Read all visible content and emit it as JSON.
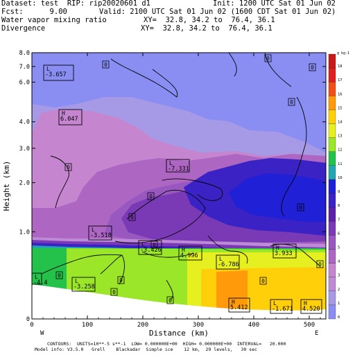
{
  "header": {
    "dataset_label": "Dataset:",
    "dataset_value": "test",
    "rip_label": "RIP:",
    "rip_value": "rip20020601 d1",
    "init": "Init: 1200 UTC Sat 01 Jun 02",
    "fcst_label": "Fcst:",
    "fcst_value": "9.00",
    "valid": "Valid: 2100 UTC Sat 01 Jun 02 (1600 CDT Sat 01 Jun 02)",
    "field1": "Water vapor mixing ratio",
    "field2": "Divergence",
    "xy1": "XY=  32.8, 34.2 to  76.4, 36.1",
    "xy2": "XY=  32.8, 34.2 to  76.4, 36.1"
  },
  "footer": {
    "line1": "CONTOURS:  UNITS=10**-5 s**-1  LOW= 0.000000E+00  HIGH= 0.000000E+00  INTERVAL=   20.000",
    "line2": "Model info: V3.5.0   Grell    Blackadar  Simple ice    12 km,  29 levels,   30 sec"
  },
  "chart_data": {
    "type": "heatmap",
    "xlabel": "Distance (km)",
    "ylabel": "Height (km)",
    "xlim": [
      0,
      530
    ],
    "x_ticks": [
      0,
      100,
      200,
      300,
      400,
      500
    ],
    "y_tick_labels": [
      "0",
      "1.0",
      "2.0",
      "3.0",
      "4.0",
      "6.0",
      "7.0",
      "8.0"
    ],
    "y_tick_heights": [
      0,
      1.0,
      2.0,
      3.0,
      4.0,
      6.0,
      7.0,
      8.0
    ],
    "left_end": "W",
    "right_end": "E",
    "colorbar": {
      "unit": "g kg-1",
      "levels": [
        0,
        1,
        2,
        3,
        4,
        5,
        6,
        7,
        8,
        9,
        10,
        11,
        12,
        13,
        14,
        15,
        16,
        17,
        18
      ],
      "colors": [
        "#8a8ef2",
        "#a69ae6",
        "#bd8ad6",
        "#c585cf",
        "#ad66c2",
        "#9957c0",
        "#7a3ab6",
        "#5e1fa8",
        "#3a22c4",
        "#2020d6",
        "#22a6b0",
        "#24c24a",
        "#9be628",
        "#e6f020",
        "#ffd00a",
        "#ff9a0a",
        "#f05018",
        "#e02020",
        "#c81a18"
      ]
    },
    "minmax_labels": [
      {
        "kind": "L",
        "value": "-3.657"
      },
      {
        "kind": "H",
        "value": "6.047"
      },
      {
        "kind": "L",
        "value": "-7.331"
      },
      {
        "kind": "L",
        "value": "-3.518"
      },
      {
        "kind": "L",
        "value": "-3.426"
      },
      {
        "kind": "H",
        "value": "4.996"
      },
      {
        "kind": "L",
        "value": "-6.786"
      },
      {
        "kind": "H",
        "value": "3.933"
      },
      {
        "kind": "L",
        "value": "-3.258"
      },
      {
        "kind": "L",
        "value": "-4.4"
      },
      {
        "kind": "H",
        "value": "5.412"
      },
      {
        "kind": "L",
        "value": "-1.671"
      },
      {
        "kind": "H",
        "value": "4.520"
      }
    ],
    "zero_labels": [
      "0",
      "0",
      "0",
      "0",
      "0",
      "0",
      "0",
      "0",
      "0",
      "0",
      "0",
      "0",
      "0",
      "0",
      "0"
    ]
  }
}
